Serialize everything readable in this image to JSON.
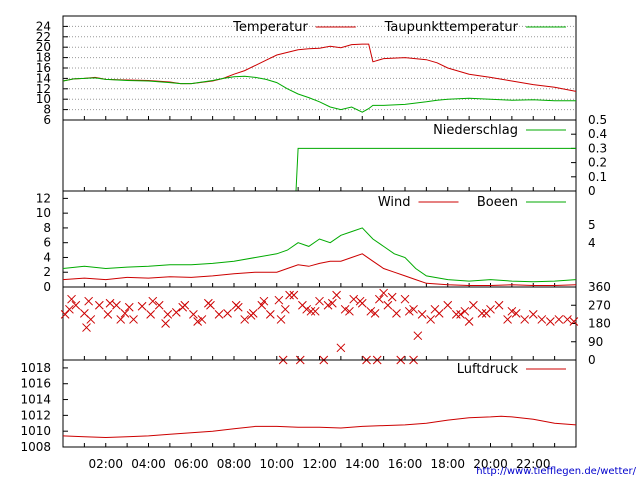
{
  "footer": {
    "url": "http://www.tiefflegen.de/wetter/"
  },
  "x_ticks": [
    "02:00",
    "04:00",
    "06:00",
    "08:00",
    "10:00",
    "12:00",
    "14:00",
    "16:00",
    "18:00",
    "20:00",
    "22:00"
  ],
  "colors": {
    "red": "#cc0000",
    "green": "#00aa00",
    "grid": "#999999",
    "axis": "#000000"
  },
  "chart_data": [
    {
      "type": "line",
      "panel": "temperature",
      "x_unit": "hour",
      "xlim": [
        0,
        24
      ],
      "ylim": [
        6,
        26
      ],
      "y_ticks": [
        6,
        8,
        10,
        12,
        14,
        16,
        18,
        20,
        22,
        24
      ],
      "series": [
        {
          "name": "Temperatur",
          "color": "#cc0000",
          "x": [
            0,
            0.5,
            1,
            1.5,
            2,
            3,
            4,
            5,
            5.5,
            6,
            7,
            7.5,
            8,
            8.5,
            9,
            9.5,
            10,
            10.5,
            11,
            11.5,
            12,
            12.5,
            13,
            13.5,
            14,
            14.3,
            14.5,
            15,
            16,
            17,
            17.5,
            18,
            19,
            20,
            21,
            22,
            23,
            24
          ],
          "values": [
            13.5,
            13.9,
            14.0,
            14.2,
            13.8,
            13.7,
            13.6,
            13.3,
            13.0,
            13.0,
            13.5,
            14.0,
            14.8,
            15.5,
            16.5,
            17.5,
            18.5,
            19.0,
            19.5,
            19.7,
            19.8,
            20.2,
            19.9,
            20.5,
            20.6,
            20.6,
            17.2,
            17.8,
            18.0,
            17.6,
            17.0,
            16.0,
            14.8,
            14.2,
            13.5,
            12.8,
            12.3,
            11.5
          ]
        },
        {
          "name": "Taupunkttemperatur",
          "color": "#00aa00",
          "x": [
            0,
            0.5,
            1,
            1.5,
            2,
            3,
            4,
            5,
            5.5,
            6,
            7,
            7.5,
            8,
            8.5,
            9,
            9.5,
            10,
            10.5,
            11,
            11.5,
            12,
            12.5,
            13,
            13.5,
            14,
            14.3,
            14.5,
            15,
            16,
            17,
            17.5,
            18,
            19,
            20,
            21,
            22,
            23,
            24
          ],
          "values": [
            13.5,
            13.9,
            14.0,
            14.1,
            13.8,
            13.6,
            13.5,
            13.2,
            13.0,
            13.0,
            13.6,
            14.0,
            14.3,
            14.4,
            14.2,
            13.8,
            13.2,
            12.0,
            11.0,
            10.3,
            9.5,
            8.5,
            8.0,
            8.5,
            7.5,
            8.2,
            8.8,
            8.8,
            9.0,
            9.5,
            9.8,
            10.0,
            10.2,
            10.0,
            9.8,
            9.9,
            9.7,
            9.7
          ]
        }
      ]
    },
    {
      "type": "line",
      "panel": "precipitation",
      "xlim": [
        0,
        24
      ],
      "ylim": [
        0,
        0.5
      ],
      "y_ticks": [
        0,
        0.1,
        0.2,
        0.3,
        0.4,
        0.5
      ],
      "series": [
        {
          "name": "Niederschlag",
          "color": "#00aa00",
          "x": [
            10.9,
            11.0,
            24
          ],
          "values": [
            0,
            0.3,
            0.3
          ]
        }
      ]
    },
    {
      "type": "line",
      "panel": "wind",
      "xlim": [
        0,
        24
      ],
      "ylim": [
        0,
        13
      ],
      "y_ticks": [
        0,
        2,
        4,
        6,
        8,
        10,
        12
      ],
      "right_ticks": [
        "4",
        "5"
      ],
      "series": [
        {
          "name": "Wind",
          "color": "#cc0000",
          "x": [
            0,
            1,
            2,
            3,
            4,
            5,
            6,
            7,
            8,
            9,
            10,
            10.5,
            11,
            11.5,
            12,
            12.5,
            13,
            13.5,
            14,
            14.5,
            15,
            15.5,
            16,
            16.5,
            17,
            18,
            19,
            20,
            21,
            22,
            23,
            24
          ],
          "values": [
            1.0,
            1.2,
            1.0,
            1.3,
            1.2,
            1.4,
            1.3,
            1.5,
            1.8,
            2.0,
            2.0,
            2.5,
            3.0,
            2.8,
            3.2,
            3.5,
            3.5,
            4.0,
            4.5,
            3.5,
            2.5,
            2.0,
            1.5,
            1.0,
            0.5,
            0.3,
            0.2,
            0.2,
            0.3,
            0.2,
            0.2,
            0.3
          ]
        },
        {
          "name": "Boeen",
          "color": "#00aa00",
          "x": [
            0,
            1,
            2,
            3,
            4,
            5,
            6,
            7,
            8,
            9,
            10,
            10.5,
            11,
            11.5,
            12,
            12.5,
            13,
            13.5,
            14,
            14.5,
            15,
            15.5,
            16,
            16.5,
            17,
            18,
            19,
            20,
            21,
            22,
            23,
            24
          ],
          "values": [
            2.5,
            2.8,
            2.5,
            2.7,
            2.8,
            3.0,
            3.0,
            3.2,
            3.5,
            4.0,
            4.5,
            5.0,
            6.0,
            5.5,
            6.5,
            6.0,
            7.0,
            7.5,
            8.0,
            6.5,
            5.5,
            4.5,
            4.0,
            2.5,
            1.5,
            1.0,
            0.8,
            1.0,
            0.8,
            0.7,
            0.8,
            1.0
          ]
        }
      ]
    },
    {
      "type": "scatter",
      "panel": "wind-direction",
      "xlim": [
        0,
        24
      ],
      "ylim": [
        0,
        360
      ],
      "y_ticks": [
        0,
        90,
        180,
        270,
        360
      ],
      "series": [
        {
          "name": "",
          "color": "#cc0000",
          "marker": "x",
          "x": [
            0.1,
            0.3,
            0.6,
            1.0,
            1.3,
            1.7,
            2.1,
            2.5,
            2.9,
            3.3,
            3.7,
            4.1,
            4.5,
            4.9,
            5.3,
            5.7,
            6.1,
            6.5,
            6.9,
            7.3,
            7.7,
            8.1,
            8.5,
            8.9,
            9.3,
            9.7,
            10.1,
            10.4,
            10.8,
            11.2,
            11.6,
            12.0,
            12.4,
            12.8,
            13.2,
            13.6,
            14.0,
            14.4,
            14.8,
            15.2,
            15.6,
            16.0,
            16.4,
            16.8,
            17.2,
            17.6,
            18.0,
            18.4,
            18.8,
            19.2,
            19.6,
            20.0,
            20.4,
            20.8,
            21.2,
            21.6,
            22.0,
            22.4,
            22.8,
            23.2,
            23.6,
            23.9,
            0.4,
            1.2,
            2.2,
            3.1,
            4.2,
            5.6,
            6.8,
            8.2,
            9.4,
            10.6,
            11.4,
            12.6,
            13.4,
            14.6,
            15.4,
            16.2,
            17.4,
            18.6,
            19.8,
            21.0,
            1.1,
            2.7,
            4.8,
            6.3,
            8.8,
            10.2,
            11.8,
            13.0,
            13.9,
            15.0,
            16.6,
            19.0,
            10.3,
            11.1,
            12.2,
            14.2,
            14.7,
            15.8,
            16.4
          ],
          "values": [
            225,
            250,
            270,
            230,
            200,
            270,
            225,
            270,
            230,
            200,
            265,
            225,
            270,
            225,
            235,
            270,
            225,
            200,
            270,
            225,
            230,
            270,
            200,
            230,
            270,
            225,
            295,
            250,
            320,
            270,
            240,
            290,
            270,
            320,
            250,
            300,
            280,
            240,
            300,
            270,
            230,
            300,
            250,
            225,
            200,
            230,
            270,
            225,
            240,
            270,
            230,
            250,
            270,
            200,
            230,
            200,
            225,
            200,
            190,
            200,
            200,
            190,
            300,
            290,
            280,
            260,
            290,
            260,
            280,
            260,
            290,
            320,
            250,
            280,
            240,
            230,
            310,
            240,
            250,
            225,
            230,
            240,
            160,
            200,
            180,
            190,
            220,
            200,
            240,
            60,
            290,
            330,
            120,
            190,
            0,
            0,
            0,
            0,
            0,
            0,
            0
          ]
        }
      ]
    },
    {
      "type": "line",
      "panel": "pressure",
      "xlim": [
        0,
        24
      ],
      "ylim": [
        1008,
        1019
      ],
      "y_ticks": [
        1008,
        1010,
        1012,
        1014,
        1016,
        1018
      ],
      "series": [
        {
          "name": "Luftdruck",
          "color": "#cc0000",
          "x": [
            0,
            1,
            2,
            3,
            4,
            5,
            6,
            7,
            8,
            9,
            10,
            11,
            12,
            13,
            14,
            15,
            16,
            17,
            18,
            19,
            20,
            20.5,
            21,
            22,
            23,
            24
          ],
          "values": [
            1009.4,
            1009.3,
            1009.2,
            1009.3,
            1009.4,
            1009.6,
            1009.8,
            1010.0,
            1010.3,
            1010.6,
            1010.6,
            1010.5,
            1010.5,
            1010.4,
            1010.6,
            1010.7,
            1010.8,
            1011.0,
            1011.4,
            1011.7,
            1011.8,
            1011.9,
            1011.8,
            1011.5,
            1011.0,
            1010.8
          ]
        }
      ]
    }
  ]
}
